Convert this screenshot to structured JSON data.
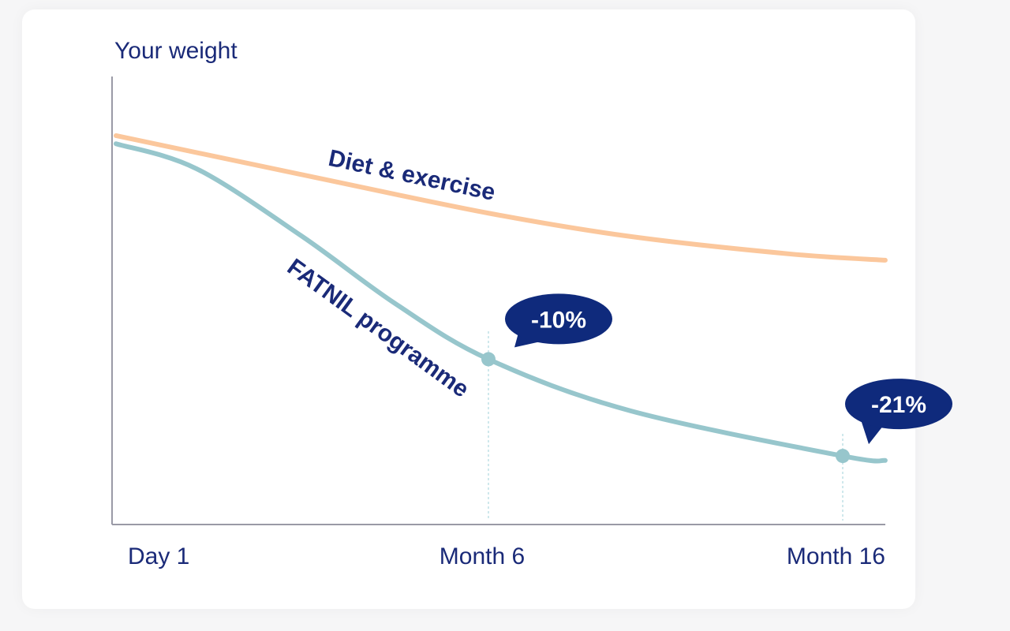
{
  "chart_data": {
    "type": "line",
    "title": "Your weight",
    "xlabel": "",
    "ylabel": "Your weight",
    "x_ticks": [
      {
        "label": "Day 1",
        "month": 0
      },
      {
        "label": "Month 6",
        "month": 6
      },
      {
        "label": "Month 16",
        "month": 16
      }
    ],
    "ylim": [
      0,
      100
    ],
    "grid": false,
    "series": [
      {
        "name": "Diet & exercise",
        "color": "#fbc79c",
        "points": [
          [
            0,
            86.8
          ],
          [
            3.2,
            77.5
          ],
          [
            6,
            69.5
          ],
          [
            10,
            64.3
          ],
          [
            14.5,
            60.4
          ],
          [
            17.2,
            59
          ]
        ]
      },
      {
        "name": "FATNIL programme",
        "color": "#97c6cc",
        "points": [
          [
            0,
            85
          ],
          [
            1.3,
            79.4
          ],
          [
            3,
            64.3
          ],
          [
            4.5,
            49.3
          ],
          [
            6,
            36.9
          ],
          [
            10,
            25.4
          ],
          [
            16,
            15.3
          ],
          [
            17.2,
            14.3
          ]
        ]
      }
    ],
    "annotations": [
      {
        "label": "-10%",
        "month": 6,
        "series": "FATNIL programme"
      },
      {
        "label": "-21%",
        "month": 16,
        "series": "FATNIL programme"
      }
    ],
    "colors": {
      "text": "#1a2a78",
      "bubble": "#0f2a7c",
      "axis": "#9a9aa6"
    }
  }
}
